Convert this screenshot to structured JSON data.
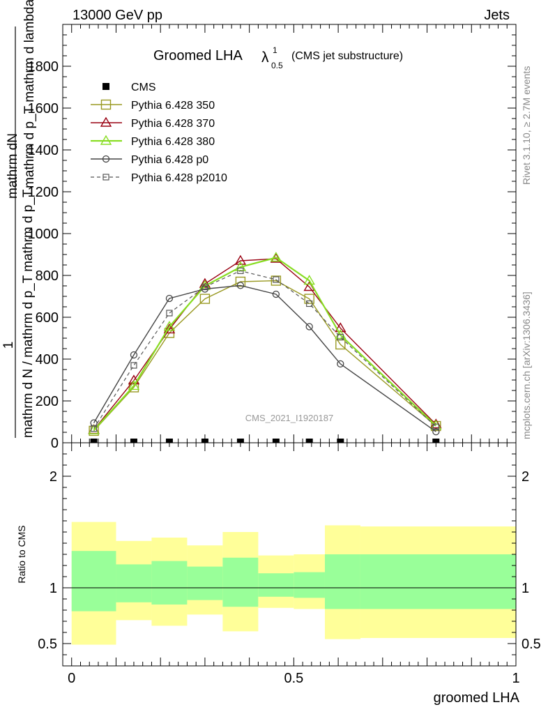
{
  "header": {
    "left": "13000 GeV pp",
    "right": "Jets"
  },
  "title_main": "Groomed LHA",
  "title_lambda": "λ",
  "title_sup": "1",
  "title_sub": "0.5",
  "title_suffix": "(CMS jet substructure)",
  "side_label_top": "Rivet 3.1.10, ≥ 2.7M events",
  "side_label_bottom": "mcplots.cern.ch [arXiv:1306.3436]",
  "analysis_id": "CMS_2021_I1920187",
  "ylabel_numerator": "mathrm dN",
  "ylabel_numerator_line2": "mathrm d p_T mathrm d lambda",
  "ylabel_one": "1",
  "ylabel_denominator": "mathrm d N / mathrm d p_T mathrm d p_T",
  "ratio_ylabel": "Ratio to CMS",
  "xlabel": "groomed LHA",
  "colors": {
    "p350": "#999922",
    "p370": "#990011",
    "p380": "#88dd22",
    "p0": "#444444",
    "p2010": "#555555",
    "band_outer": "#ffff99",
    "band_inner": "#99ff99"
  },
  "chart_data": [
    {
      "type": "line",
      "panel": "main",
      "xlim": [
        -0.02,
        1.0
      ],
      "ylim": [
        0,
        2000
      ],
      "yticks": [
        0,
        200,
        400,
        600,
        800,
        1000,
        1200,
        1400,
        1600,
        1800
      ],
      "ytick_labels": [
        "0",
        "200",
        "400",
        "600",
        "800",
        "1000",
        "1200",
        "1400",
        "1600",
        "1800"
      ],
      "x": [
        0.05,
        0.14,
        0.22,
        0.3,
        0.38,
        0.46,
        0.535,
        0.605,
        0.82
      ],
      "series": [
        {
          "name": "CMS",
          "key": "cms",
          "marker": "filled-square",
          "values": [
            0,
            0,
            0,
            0,
            0,
            0,
            0,
            0,
            0
          ]
        },
        {
          "name": "Pythia 6.428 350",
          "key": "p350",
          "marker": "open-square",
          "values": [
            57,
            265,
            525,
            688,
            770,
            775,
            688,
            470,
            80
          ]
        },
        {
          "name": "Pythia 6.428 370",
          "key": "p370",
          "marker": "open-triangle",
          "values": [
            62,
            298,
            542,
            760,
            870,
            880,
            745,
            548,
            88
          ]
        },
        {
          "name": "Pythia 6.428 380",
          "key": "p380",
          "marker": "open-triangle",
          "values": [
            60,
            272,
            555,
            750,
            840,
            885,
            775,
            515,
            82
          ]
        },
        {
          "name": "Pythia 6.428 p0",
          "key": "p0",
          "marker": "open-circle",
          "values": [
            95,
            420,
            690,
            735,
            752,
            710,
            555,
            377,
            53
          ]
        },
        {
          "name": "Pythia 6.428 p2010",
          "key": "p2010",
          "marker": "small-open-square",
          "dashed": true,
          "values": [
            68,
            370,
            620,
            745,
            822,
            780,
            665,
            505,
            76
          ]
        }
      ]
    },
    {
      "type": "area",
      "panel": "ratio",
      "xlim": [
        -0.02,
        1.0
      ],
      "ylim": [
        0.3,
        2.3
      ],
      "yticks": [
        0.5,
        1,
        2
      ],
      "ytick_labels": [
        "0.5",
        "1",
        "2"
      ],
      "xticks": [
        0,
        0.5,
        1
      ],
      "xtick_labels": [
        "0",
        "0.5",
        "1"
      ],
      "bins": [
        {
          "x0": 0.0,
          "x1": 0.1,
          "outer": [
            0.49,
            1.59
          ],
          "inner": [
            0.79,
            1.33
          ]
        },
        {
          "x0": 0.1,
          "x1": 0.18,
          "outer": [
            0.71,
            1.42
          ],
          "inner": [
            0.87,
            1.21
          ]
        },
        {
          "x0": 0.18,
          "x1": 0.26,
          "outer": [
            0.66,
            1.45
          ],
          "inner": [
            0.85,
            1.24
          ]
        },
        {
          "x0": 0.26,
          "x1": 0.34,
          "outer": [
            0.76,
            1.38
          ],
          "inner": [
            0.89,
            1.19
          ]
        },
        {
          "x0": 0.34,
          "x1": 0.42,
          "outer": [
            0.61,
            1.5
          ],
          "inner": [
            0.83,
            1.27
          ]
        },
        {
          "x0": 0.42,
          "x1": 0.5,
          "outer": [
            0.82,
            1.29
          ],
          "inner": [
            0.92,
            1.13
          ]
        },
        {
          "x0": 0.5,
          "x1": 0.57,
          "outer": [
            0.81,
            1.3
          ],
          "inner": [
            0.91,
            1.14
          ]
        },
        {
          "x0": 0.57,
          "x1": 0.65,
          "outer": [
            0.54,
            1.56
          ],
          "inner": [
            0.81,
            1.3
          ]
        },
        {
          "x0": 0.65,
          "x1": 1.0,
          "outer": [
            0.55,
            1.55
          ],
          "inner": [
            0.81,
            1.3
          ]
        }
      ]
    }
  ]
}
